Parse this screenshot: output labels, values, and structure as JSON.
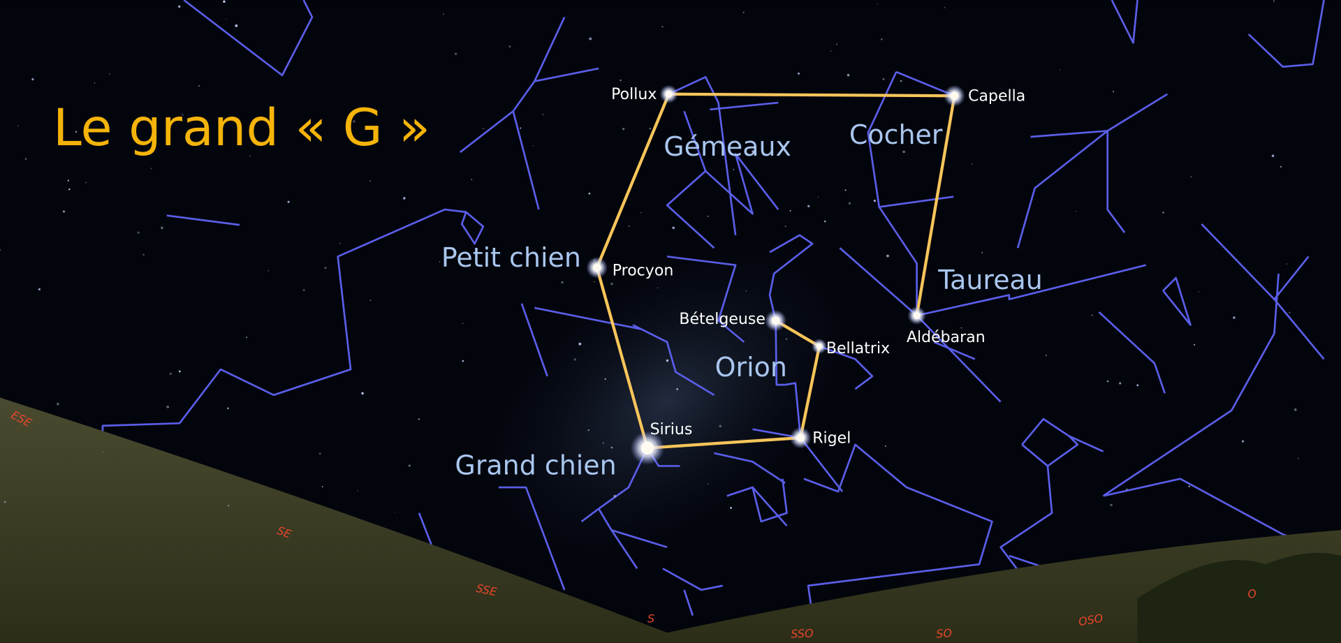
{
  "title": "Le grand « G »",
  "stars": [
    {
      "label": "Pollux"
    },
    {
      "label": "Capella"
    },
    {
      "label": "Procyon"
    },
    {
      "label": "Bételgeuse"
    },
    {
      "label": "Bellatrix"
    },
    {
      "label": "Aldébaran"
    },
    {
      "label": "Rigel"
    },
    {
      "label": "Sirius"
    }
  ],
  "constellations": [
    {
      "label": "Gémeaux"
    },
    {
      "label": "Cocher"
    },
    {
      "label": "Petit chien"
    },
    {
      "label": "Taureau"
    },
    {
      "label": "Orion"
    },
    {
      "label": "Grand chien"
    }
  ],
  "directions": [
    {
      "label": "ESE"
    },
    {
      "label": "SE"
    },
    {
      "label": "SSE"
    },
    {
      "label": "S"
    },
    {
      "label": "SSO"
    },
    {
      "label": "SO"
    },
    {
      "label": "OSO"
    },
    {
      "label": "O"
    }
  ]
}
